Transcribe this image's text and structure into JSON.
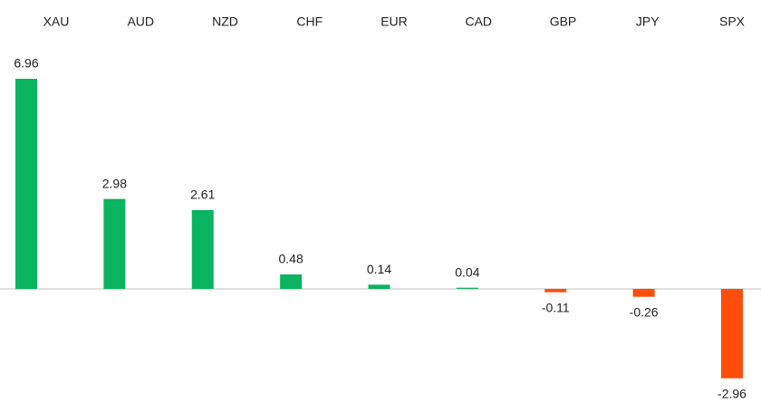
{
  "chart_data": {
    "type": "bar",
    "categories": [
      "XAU",
      "AUD",
      "NZD",
      "CHF",
      "EUR",
      "CAD",
      "GBP",
      "JPY",
      "SPX"
    ],
    "values": [
      6.96,
      2.98,
      2.61,
      0.48,
      0.14,
      0.04,
      -0.11,
      -0.26,
      -2.96
    ],
    "positive_color": "#0bb45e",
    "negative_color": "#ff4e0c"
  }
}
